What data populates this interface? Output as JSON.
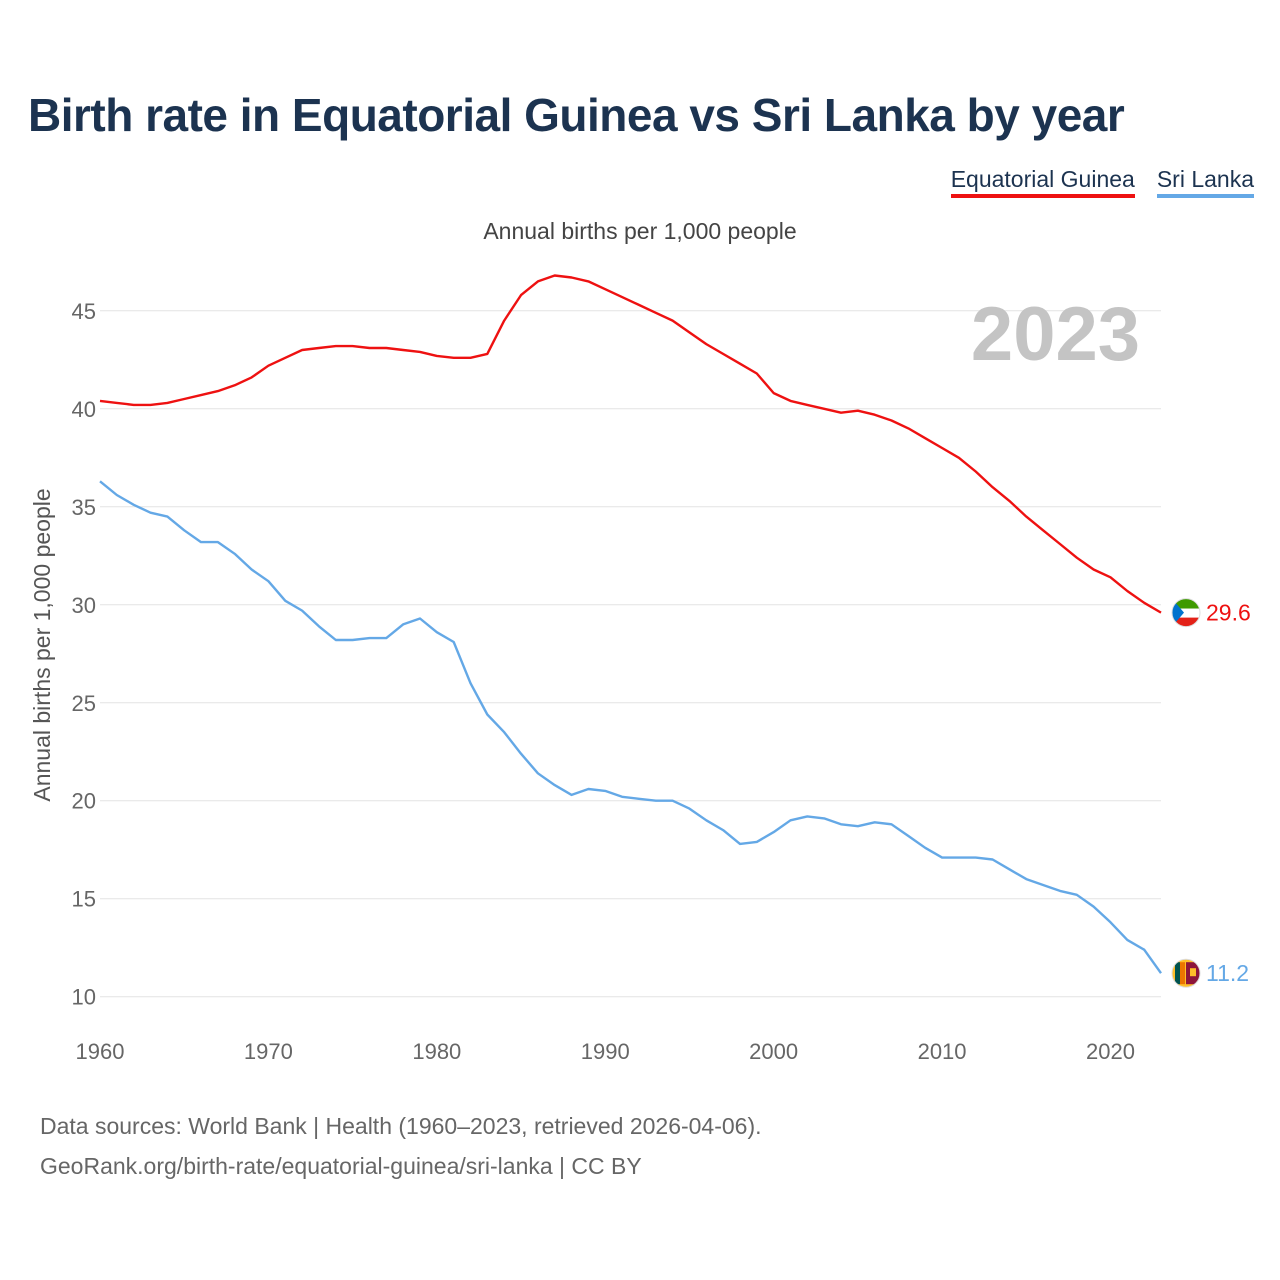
{
  "title": "Birth rate in Equatorial Guinea vs Sri Lanka by year",
  "legend": [
    "Equatorial Guinea",
    "Sri Lanka"
  ],
  "subtitle": "Annual births per 1,000 people",
  "source_line1": "Data sources: World Bank | Health (1960–2023, retrieved 2026-04-06).",
  "source_line2": "GeoRank.org/birth-rate/equatorial-guinea/sri-lanka | CC BY",
  "colors": {
    "eq_guinea": "#ee1111",
    "sri_lanka": "#64a8e6",
    "title": "#1c3350"
  },
  "chart_data": {
    "type": "line",
    "title": "Birth rate in Equatorial Guinea vs Sri Lanka by year",
    "ylabel": "Annual births per 1,000 people",
    "xlabel": "",
    "year_label": "2023",
    "xlim": [
      1960,
      2023
    ],
    "ylim": [
      8.2,
      48
    ],
    "x_ticks": [
      1960,
      1970,
      1980,
      1990,
      2000,
      2010,
      2020
    ],
    "y_ticks": [
      10,
      15,
      20,
      25,
      30,
      35,
      40,
      45
    ],
    "x": [
      1960,
      1961,
      1962,
      1963,
      1964,
      1965,
      1966,
      1967,
      1968,
      1969,
      1970,
      1971,
      1972,
      1973,
      1974,
      1975,
      1976,
      1977,
      1978,
      1979,
      1980,
      1981,
      1982,
      1983,
      1984,
      1985,
      1986,
      1987,
      1988,
      1989,
      1990,
      1991,
      1992,
      1993,
      1994,
      1995,
      1996,
      1997,
      1998,
      1999,
      2000,
      2001,
      2002,
      2003,
      2004,
      2005,
      2006,
      2007,
      2008,
      2009,
      2010,
      2011,
      2012,
      2013,
      2014,
      2015,
      2016,
      2017,
      2018,
      2019,
      2020,
      2021,
      2022,
      2023
    ],
    "series": [
      {
        "name": "Equatorial Guinea",
        "color": "#ee1111",
        "end_label": "29.6",
        "values": [
          40.4,
          40.3,
          40.2,
          40.2,
          40.3,
          40.5,
          40.7,
          40.9,
          41.2,
          41.6,
          42.2,
          42.6,
          43.0,
          43.1,
          43.2,
          43.2,
          43.1,
          43.1,
          43.0,
          42.9,
          42.7,
          42.6,
          42.6,
          42.8,
          44.5,
          45.8,
          46.5,
          46.8,
          46.7,
          46.5,
          46.1,
          45.7,
          45.3,
          44.9,
          44.5,
          43.9,
          43.3,
          42.8,
          42.3,
          41.8,
          40.8,
          40.4,
          40.2,
          40.0,
          39.8,
          39.9,
          39.7,
          39.4,
          39.0,
          38.5,
          38.0,
          37.5,
          36.8,
          36.0,
          35.3,
          34.5,
          33.8,
          33.1,
          32.4,
          31.8,
          31.4,
          30.7,
          30.1,
          29.6
        ]
      },
      {
        "name": "Sri Lanka",
        "color": "#64a8e6",
        "end_label": "11.2",
        "values": [
          36.3,
          35.6,
          35.1,
          34.7,
          34.5,
          33.8,
          33.2,
          33.2,
          32.6,
          31.8,
          31.2,
          30.2,
          29.7,
          28.9,
          28.2,
          28.2,
          28.3,
          28.3,
          29.0,
          29.3,
          28.6,
          28.1,
          26.0,
          24.4,
          23.5,
          22.4,
          21.4,
          20.8,
          20.3,
          20.6,
          20.5,
          20.2,
          20.1,
          20.0,
          20.0,
          19.6,
          19.0,
          18.5,
          17.8,
          17.9,
          18.4,
          19.0,
          19.2,
          19.1,
          18.8,
          18.7,
          18.9,
          18.8,
          18.2,
          17.6,
          17.1,
          17.1,
          17.1,
          17.0,
          16.5,
          16.0,
          15.7,
          15.4,
          15.2,
          14.6,
          13.8,
          12.9,
          12.4,
          11.2
        ]
      }
    ]
  }
}
